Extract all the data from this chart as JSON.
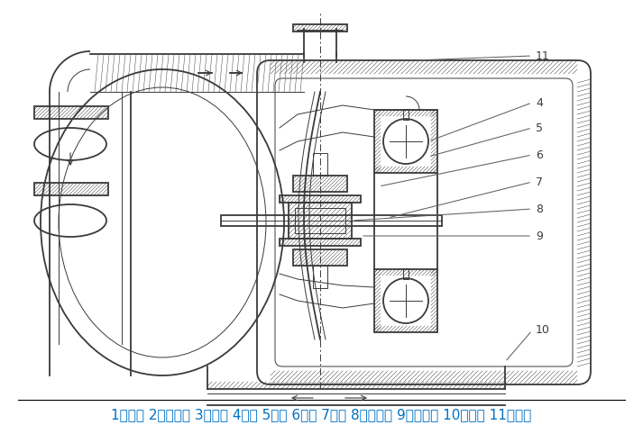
{
  "background_color": "#ffffff",
  "legend_text": "1进气口 2配气阀体 3配气阀 4圆球 5球座 6隔膜 7连杆 8连杆铜套 9中间支架 10泵进口 11排气口",
  "legend_color": "#0070c0",
  "legend_fontsize": 11,
  "fig_width": 7.13,
  "fig_height": 4.82,
  "dpi": 100,
  "line_color": "#3a3a3a",
  "hatch_color": "#5a5a5a"
}
